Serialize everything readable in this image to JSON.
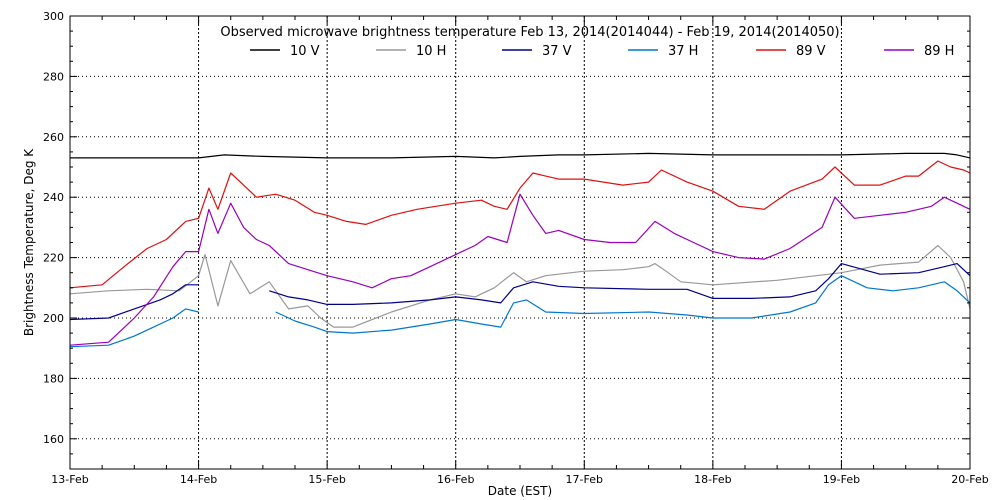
{
  "chart_data": {
    "type": "line",
    "title": "Observed microwave brightness temperature Feb 13, 2014(2014044) - Feb 19, 2014(2014050)",
    "xlabel": "Date (EST)",
    "ylabel": "Brightness Temperature, Deg K",
    "x_unit": "day of February 2014",
    "xlim": [
      13,
      20
    ],
    "ylim": [
      150,
      300
    ],
    "x_ticks": [
      13,
      14,
      15,
      16,
      17,
      18,
      19,
      20
    ],
    "x_tick_labels": [
      "13-Feb",
      "14-Feb",
      "15-Feb",
      "16-Feb",
      "17-Feb",
      "18-Feb",
      "19-Feb",
      "20-Feb"
    ],
    "y_ticks": [
      160,
      180,
      200,
      220,
      240,
      260,
      280,
      300
    ],
    "y_tick_labels": [
      "160",
      "180",
      "200",
      "220",
      "240",
      "260",
      "280",
      "300"
    ],
    "grid": true,
    "legend_position": "top",
    "series": [
      {
        "name": "10 V",
        "color": "#000000",
        "x": [
          13.0,
          13.5,
          14.0,
          14.2,
          14.5,
          15.0,
          15.5,
          16.0,
          16.3,
          16.5,
          16.8,
          17.0,
          17.5,
          18.0,
          18.5,
          19.0,
          19.5,
          19.8,
          19.9,
          20.0
        ],
        "y": [
          253,
          253,
          253,
          254,
          253.5,
          253,
          253,
          253.5,
          253,
          253.5,
          254,
          254,
          254.5,
          254,
          254,
          254,
          254.5,
          254.5,
          254,
          253
        ]
      },
      {
        "name": "10 H",
        "color": "#999999",
        "x": [
          13.0,
          13.3,
          13.6,
          13.85,
          14.0,
          14.05,
          14.15,
          14.25,
          14.4,
          14.55,
          14.7,
          14.85,
          14.95,
          15.05,
          15.2,
          15.5,
          15.8,
          16.0,
          16.15,
          16.3,
          16.45,
          16.55,
          16.7,
          17.0,
          17.3,
          17.5,
          17.55,
          17.62,
          17.75,
          18.0,
          18.5,
          19.0,
          19.3,
          19.6,
          19.75,
          19.85,
          19.95,
          20.0
        ],
        "y": [
          208,
          209,
          209.5,
          209,
          214,
          221,
          204,
          219,
          208,
          212,
          203,
          204,
          200,
          197,
          197,
          202,
          206,
          208,
          207,
          210,
          215,
          212,
          214,
          215.5,
          216,
          217,
          218,
          216,
          212,
          211,
          212.5,
          215,
          217.5,
          218.5,
          224,
          220,
          212,
          203
        ]
      },
      {
        "name": "37 V",
        "color": "#00008b",
        "x": [
          13.0,
          13.3,
          13.5,
          13.7,
          13.8,
          13.9,
          14.0
        ],
        "y": [
          199.5,
          200,
          203,
          206,
          208,
          211,
          211
        ]
      },
      {
        "name": "37 V",
        "color": "#00008b",
        "x": [
          14.55,
          14.7,
          14.85,
          15.0,
          15.2,
          15.5,
          15.8,
          16.0,
          16.2,
          16.35,
          16.45,
          16.6,
          16.8,
          17.0,
          17.5,
          17.8,
          18.0,
          18.3,
          18.6,
          18.8,
          18.9,
          19.0,
          19.3,
          19.6,
          19.8,
          19.9,
          20.0
        ],
        "y": [
          209,
          207,
          206,
          204.5,
          204.5,
          205,
          206,
          207,
          206,
          205,
          210,
          212,
          210.5,
          210,
          209.5,
          209.5,
          206.5,
          206.5,
          207,
          209,
          213,
          218,
          214.5,
          215,
          217,
          218,
          214
        ]
      },
      {
        "name": "37 H",
        "color": "#0077cc",
        "x": [
          13.0,
          13.3,
          13.5,
          13.65,
          13.8,
          13.9,
          14.0
        ],
        "y": [
          190.5,
          191,
          194,
          197,
          200,
          203,
          202
        ]
      },
      {
        "name": "37 H",
        "color": "#0077cc",
        "x": [
          14.6,
          14.75,
          14.9,
          15.0,
          15.2,
          15.5,
          15.8,
          16.0,
          16.2,
          16.35,
          16.45,
          16.55,
          16.7,
          17.0,
          17.5,
          17.8,
          18.0,
          18.3,
          18.6,
          18.8,
          18.9,
          19.0,
          19.2,
          19.4,
          19.6,
          19.8,
          19.9,
          20.0
        ],
        "y": [
          202,
          199,
          197,
          195.5,
          195,
          196,
          198,
          199.5,
          198,
          197,
          205,
          206,
          202,
          201.5,
          202,
          201,
          200,
          200,
          202,
          205,
          211,
          214,
          210,
          209,
          210,
          212,
          209,
          205
        ]
      },
      {
        "name": "89 V",
        "color": "#dd1111",
        "x": [
          13.0,
          13.25,
          13.45,
          13.6,
          13.75,
          13.9,
          14.0,
          14.08,
          14.15,
          14.25,
          14.35,
          14.45,
          14.6,
          14.75,
          14.9,
          15.0,
          15.15,
          15.3,
          15.5,
          15.7,
          16.0,
          16.2,
          16.3,
          16.4,
          16.5,
          16.6,
          16.7,
          16.8,
          17.0,
          17.3,
          17.5,
          17.6,
          17.8,
          18.0,
          18.2,
          18.4,
          18.6,
          18.85,
          18.95,
          19.1,
          19.3,
          19.5,
          19.6,
          19.75,
          19.85,
          19.95,
          20.0
        ],
        "y": [
          210,
          211,
          218,
          223,
          226,
          232,
          233,
          243,
          236,
          248,
          244,
          240,
          241,
          239,
          235,
          234,
          232,
          231,
          234,
          236,
          238,
          239,
          237,
          236,
          243,
          248,
          247,
          246,
          246,
          244,
          245,
          249,
          245,
          242,
          237,
          236,
          242,
          246,
          250,
          244,
          244,
          247,
          247,
          252,
          250,
          249,
          248
        ]
      },
      {
        "name": "89 H",
        "color": "#9900bb",
        "x": [
          13.0,
          13.3,
          13.5,
          13.65,
          13.8,
          13.9,
          14.0,
          14.08,
          14.15,
          14.25,
          14.35,
          14.45,
          14.55,
          14.7,
          14.85,
          15.0,
          15.2,
          15.35,
          15.5,
          15.65,
          15.8,
          16.0,
          16.15,
          16.25,
          16.4,
          16.5,
          16.6,
          16.7,
          16.8,
          17.0,
          17.2,
          17.4,
          17.55,
          17.7,
          17.85,
          18.0,
          18.2,
          18.4,
          18.6,
          18.85,
          18.95,
          19.1,
          19.3,
          19.5,
          19.7,
          19.8,
          19.9,
          20.0
        ],
        "y": [
          191,
          192,
          200,
          207,
          217,
          222,
          222,
          236,
          228,
          238,
          230,
          226,
          224,
          218,
          216,
          214,
          212,
          210,
          213,
          214,
          217,
          221,
          224,
          227,
          225,
          241,
          234,
          228,
          229,
          226,
          225,
          225,
          232,
          228,
          225,
          222,
          220,
          219.5,
          223,
          230,
          240,
          233,
          234,
          235,
          237,
          240,
          238,
          236
        ]
      }
    ]
  }
}
